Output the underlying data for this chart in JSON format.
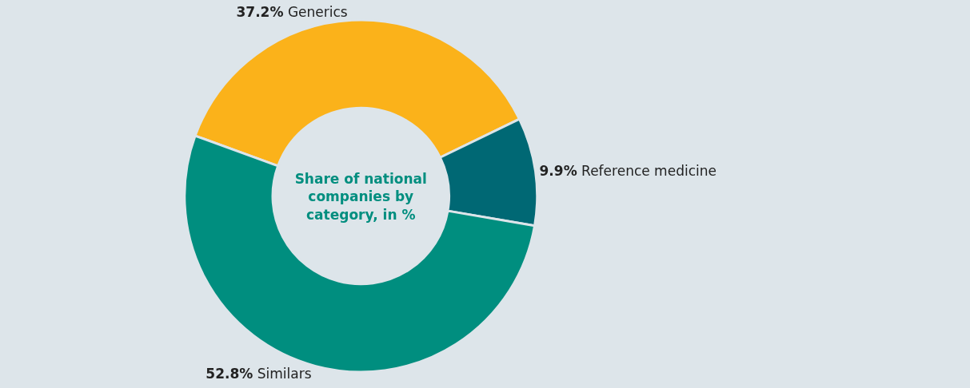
{
  "chart_data": {
    "type": "donut",
    "title": "Share of national companies by category, in %",
    "categories": [
      "Generics",
      "Reference medicine",
      "Similars"
    ],
    "values": [
      37.2,
      9.9,
      52.8
    ],
    "colors": [
      "#fbb21a",
      "#006874",
      "#008e7f"
    ],
    "value_labels": [
      "37.2%",
      "9.9%",
      "52.8%"
    ],
    "legend": false
  }
}
